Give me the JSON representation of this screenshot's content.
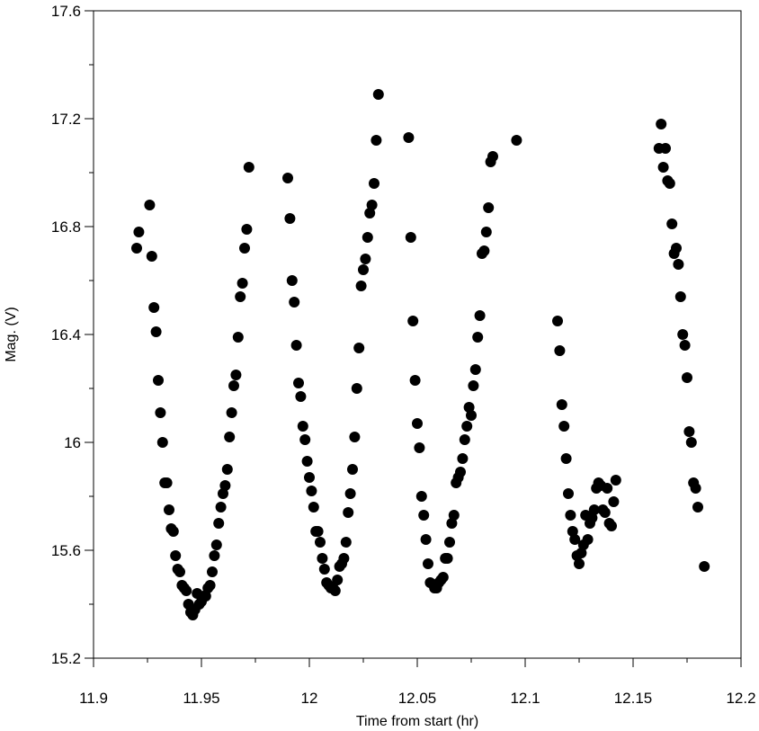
{
  "chart_data": {
    "type": "scatter",
    "title": "",
    "xlabel": "Time from start (hr)",
    "ylabel": "Mag. (V)",
    "xlim": [
      11.9,
      12.2
    ],
    "ylim": [
      15.2,
      17.6
    ],
    "y_inverted": false,
    "grid": false,
    "x_ticks": [
      11.9,
      11.95,
      12.0,
      12.05,
      12.1,
      12.15,
      12.2
    ],
    "x_tick_labels": [
      "11.9",
      "11.95",
      "12",
      "12.05",
      "12.1",
      "12.15",
      "12.2"
    ],
    "y_ticks": [
      15.2,
      15.6,
      16.0,
      16.4,
      16.8,
      17.2,
      17.6
    ],
    "y_tick_labels": [
      "15.2",
      "15.6",
      "16",
      "16.4",
      "16.8",
      "17.2",
      "17.6"
    ],
    "marker_color": "#000000",
    "series": [
      {
        "points": [
          [
            11.92,
            16.72
          ],
          [
            11.921,
            16.78
          ],
          [
            11.926,
            16.88
          ],
          [
            11.927,
            16.69
          ],
          [
            11.928,
            16.5
          ],
          [
            11.929,
            16.41
          ],
          [
            11.93,
            16.23
          ],
          [
            11.931,
            16.11
          ],
          [
            11.932,
            16.0
          ],
          [
            11.933,
            15.85
          ],
          [
            11.934,
            15.85
          ],
          [
            11.935,
            15.75
          ],
          [
            11.936,
            15.68
          ],
          [
            11.937,
            15.67
          ],
          [
            11.938,
            15.58
          ],
          [
            11.939,
            15.53
          ],
          [
            11.94,
            15.52
          ],
          [
            11.941,
            15.47
          ],
          [
            11.942,
            15.46
          ],
          [
            11.943,
            15.45
          ],
          [
            11.944,
            15.4
          ],
          [
            11.945,
            15.37
          ],
          [
            11.946,
            15.36
          ],
          [
            11.947,
            15.38
          ],
          [
            11.948,
            15.44
          ],
          [
            11.949,
            15.4
          ],
          [
            11.95,
            15.41
          ],
          [
            11.951,
            15.43
          ],
          [
            11.952,
            15.43
          ],
          [
            11.953,
            15.46
          ],
          [
            11.954,
            15.47
          ],
          [
            11.955,
            15.52
          ],
          [
            11.956,
            15.58
          ],
          [
            11.957,
            15.62
          ],
          [
            11.958,
            15.7
          ],
          [
            11.959,
            15.76
          ],
          [
            11.96,
            15.81
          ],
          [
            11.961,
            15.84
          ],
          [
            11.962,
            15.9
          ],
          [
            11.963,
            16.02
          ],
          [
            11.964,
            16.11
          ],
          [
            11.965,
            16.21
          ],
          [
            11.966,
            16.25
          ],
          [
            11.967,
            16.39
          ],
          [
            11.968,
            16.54
          ],
          [
            11.969,
            16.59
          ],
          [
            11.97,
            16.72
          ],
          [
            11.971,
            16.79
          ],
          [
            11.972,
            17.02
          ],
          [
            11.99,
            16.98
          ],
          [
            11.991,
            16.83
          ],
          [
            11.992,
            16.6
          ],
          [
            11.993,
            16.52
          ],
          [
            11.994,
            16.36
          ],
          [
            11.995,
            16.22
          ],
          [
            11.996,
            16.17
          ],
          [
            11.997,
            16.06
          ],
          [
            11.998,
            16.01
          ],
          [
            11.999,
            15.93
          ],
          [
            12.0,
            15.87
          ],
          [
            12.001,
            15.82
          ],
          [
            12.002,
            15.76
          ],
          [
            12.003,
            15.67
          ],
          [
            12.004,
            15.67
          ],
          [
            12.005,
            15.63
          ],
          [
            12.006,
            15.57
          ],
          [
            12.007,
            15.53
          ],
          [
            12.008,
            15.48
          ],
          [
            12.009,
            15.47
          ],
          [
            12.01,
            15.46
          ],
          [
            12.011,
            15.46
          ],
          [
            12.012,
            15.45
          ],
          [
            12.013,
            15.49
          ],
          [
            12.014,
            15.54
          ],
          [
            12.015,
            15.55
          ],
          [
            12.016,
            15.57
          ],
          [
            12.017,
            15.63
          ],
          [
            12.018,
            15.74
          ],
          [
            12.019,
            15.81
          ],
          [
            12.02,
            15.9
          ],
          [
            12.021,
            16.02
          ],
          [
            12.022,
            16.2
          ],
          [
            12.023,
            16.35
          ],
          [
            12.024,
            16.58
          ],
          [
            12.025,
            16.64
          ],
          [
            12.026,
            16.68
          ],
          [
            12.027,
            16.76
          ],
          [
            12.028,
            16.85
          ],
          [
            12.029,
            16.88
          ],
          [
            12.03,
            16.96
          ],
          [
            12.031,
            17.12
          ],
          [
            12.032,
            17.29
          ],
          [
            12.046,
            17.13
          ],
          [
            12.047,
            16.76
          ],
          [
            12.048,
            16.45
          ],
          [
            12.049,
            16.23
          ],
          [
            12.05,
            16.07
          ],
          [
            12.051,
            15.98
          ],
          [
            12.052,
            15.8
          ],
          [
            12.053,
            15.73
          ],
          [
            12.054,
            15.64
          ],
          [
            12.055,
            15.55
          ],
          [
            12.056,
            15.48
          ],
          [
            12.058,
            15.46
          ],
          [
            12.059,
            15.46
          ],
          [
            12.06,
            15.48
          ],
          [
            12.061,
            15.49
          ],
          [
            12.062,
            15.5
          ],
          [
            12.063,
            15.57
          ],
          [
            12.064,
            15.57
          ],
          [
            12.065,
            15.63
          ],
          [
            12.066,
            15.7
          ],
          [
            12.067,
            15.73
          ],
          [
            12.068,
            15.85
          ],
          [
            12.069,
            15.87
          ],
          [
            12.07,
            15.89
          ],
          [
            12.071,
            15.94
          ],
          [
            12.072,
            16.01
          ],
          [
            12.073,
            16.06
          ],
          [
            12.074,
            16.13
          ],
          [
            12.075,
            16.1
          ],
          [
            12.076,
            16.21
          ],
          [
            12.077,
            16.27
          ],
          [
            12.078,
            16.39
          ],
          [
            12.079,
            16.47
          ],
          [
            12.08,
            16.7
          ],
          [
            12.081,
            16.71
          ],
          [
            12.082,
            16.78
          ],
          [
            12.083,
            16.87
          ],
          [
            12.084,
            17.04
          ],
          [
            12.085,
            17.06
          ],
          [
            12.096,
            17.12
          ],
          [
            12.115,
            16.45
          ],
          [
            12.116,
            16.34
          ],
          [
            12.117,
            16.14
          ],
          [
            12.118,
            16.06
          ],
          [
            12.119,
            15.94
          ],
          [
            12.12,
            15.81
          ],
          [
            12.121,
            15.73
          ],
          [
            12.122,
            15.67
          ],
          [
            12.123,
            15.64
          ],
          [
            12.124,
            15.58
          ],
          [
            12.125,
            15.55
          ],
          [
            12.126,
            15.59
          ],
          [
            12.127,
            15.62
          ],
          [
            12.128,
            15.73
          ],
          [
            12.129,
            15.64
          ],
          [
            12.13,
            15.7
          ],
          [
            12.131,
            15.72
          ],
          [
            12.132,
            15.75
          ],
          [
            12.133,
            15.83
          ],
          [
            12.134,
            15.85
          ],
          [
            12.135,
            15.84
          ],
          [
            12.136,
            15.75
          ],
          [
            12.137,
            15.74
          ],
          [
            12.138,
            15.83
          ],
          [
            12.139,
            15.7
          ],
          [
            12.14,
            15.69
          ],
          [
            12.141,
            15.78
          ],
          [
            12.142,
            15.86
          ],
          [
            12.162,
            17.09
          ],
          [
            12.163,
            17.18
          ],
          [
            12.164,
            17.02
          ],
          [
            12.165,
            17.09
          ],
          [
            12.166,
            16.97
          ],
          [
            12.167,
            16.96
          ],
          [
            12.168,
            16.81
          ],
          [
            12.169,
            16.7
          ],
          [
            12.17,
            16.72
          ],
          [
            12.171,
            16.66
          ],
          [
            12.172,
            16.54
          ],
          [
            12.173,
            16.4
          ],
          [
            12.174,
            16.36
          ],
          [
            12.175,
            16.24
          ],
          [
            12.176,
            16.04
          ],
          [
            12.177,
            16.0
          ],
          [
            12.178,
            15.85
          ],
          [
            12.179,
            15.83
          ],
          [
            12.18,
            15.76
          ],
          [
            12.183,
            15.54
          ]
        ]
      }
    ]
  }
}
